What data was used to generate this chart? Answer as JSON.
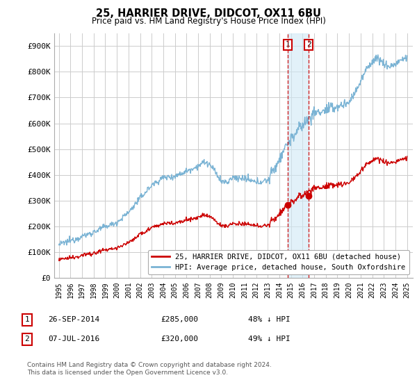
{
  "title": "25, HARRIER DRIVE, DIDCOT, OX11 6BU",
  "subtitle": "Price paid vs. HM Land Registry's House Price Index (HPI)",
  "ylim": [
    0,
    950000
  ],
  "yticks": [
    0,
    100000,
    200000,
    300000,
    400000,
    500000,
    600000,
    700000,
    800000,
    900000
  ],
  "ytick_labels": [
    "£0",
    "£100K",
    "£200K",
    "£300K",
    "£400K",
    "£500K",
    "£600K",
    "£700K",
    "£800K",
    "£900K"
  ],
  "hpi_color": "#7ab3d4",
  "price_color": "#cc0000",
  "transaction1_date_num": 2014.74,
  "transaction1_price": 285000,
  "transaction2_date_num": 2016.52,
  "transaction2_price": 320000,
  "background_color": "#ffffff",
  "grid_color": "#cccccc",
  "legend_label_red": "25, HARRIER DRIVE, DIDCOT, OX11 6BU (detached house)",
  "legend_label_blue": "HPI: Average price, detached house, South Oxfordshire",
  "note1_date": "26-SEP-2014",
  "note1_price": "£285,000",
  "note1_pct": "48% ↓ HPI",
  "note2_date": "07-JUL-2016",
  "note2_price": "£320,000",
  "note2_pct": "49% ↓ HPI",
  "footer": "Contains HM Land Registry data © Crown copyright and database right 2024.\nThis data is licensed under the Open Government Licence v3.0.",
  "xlim_left": 1994.6,
  "xlim_right": 2025.5
}
